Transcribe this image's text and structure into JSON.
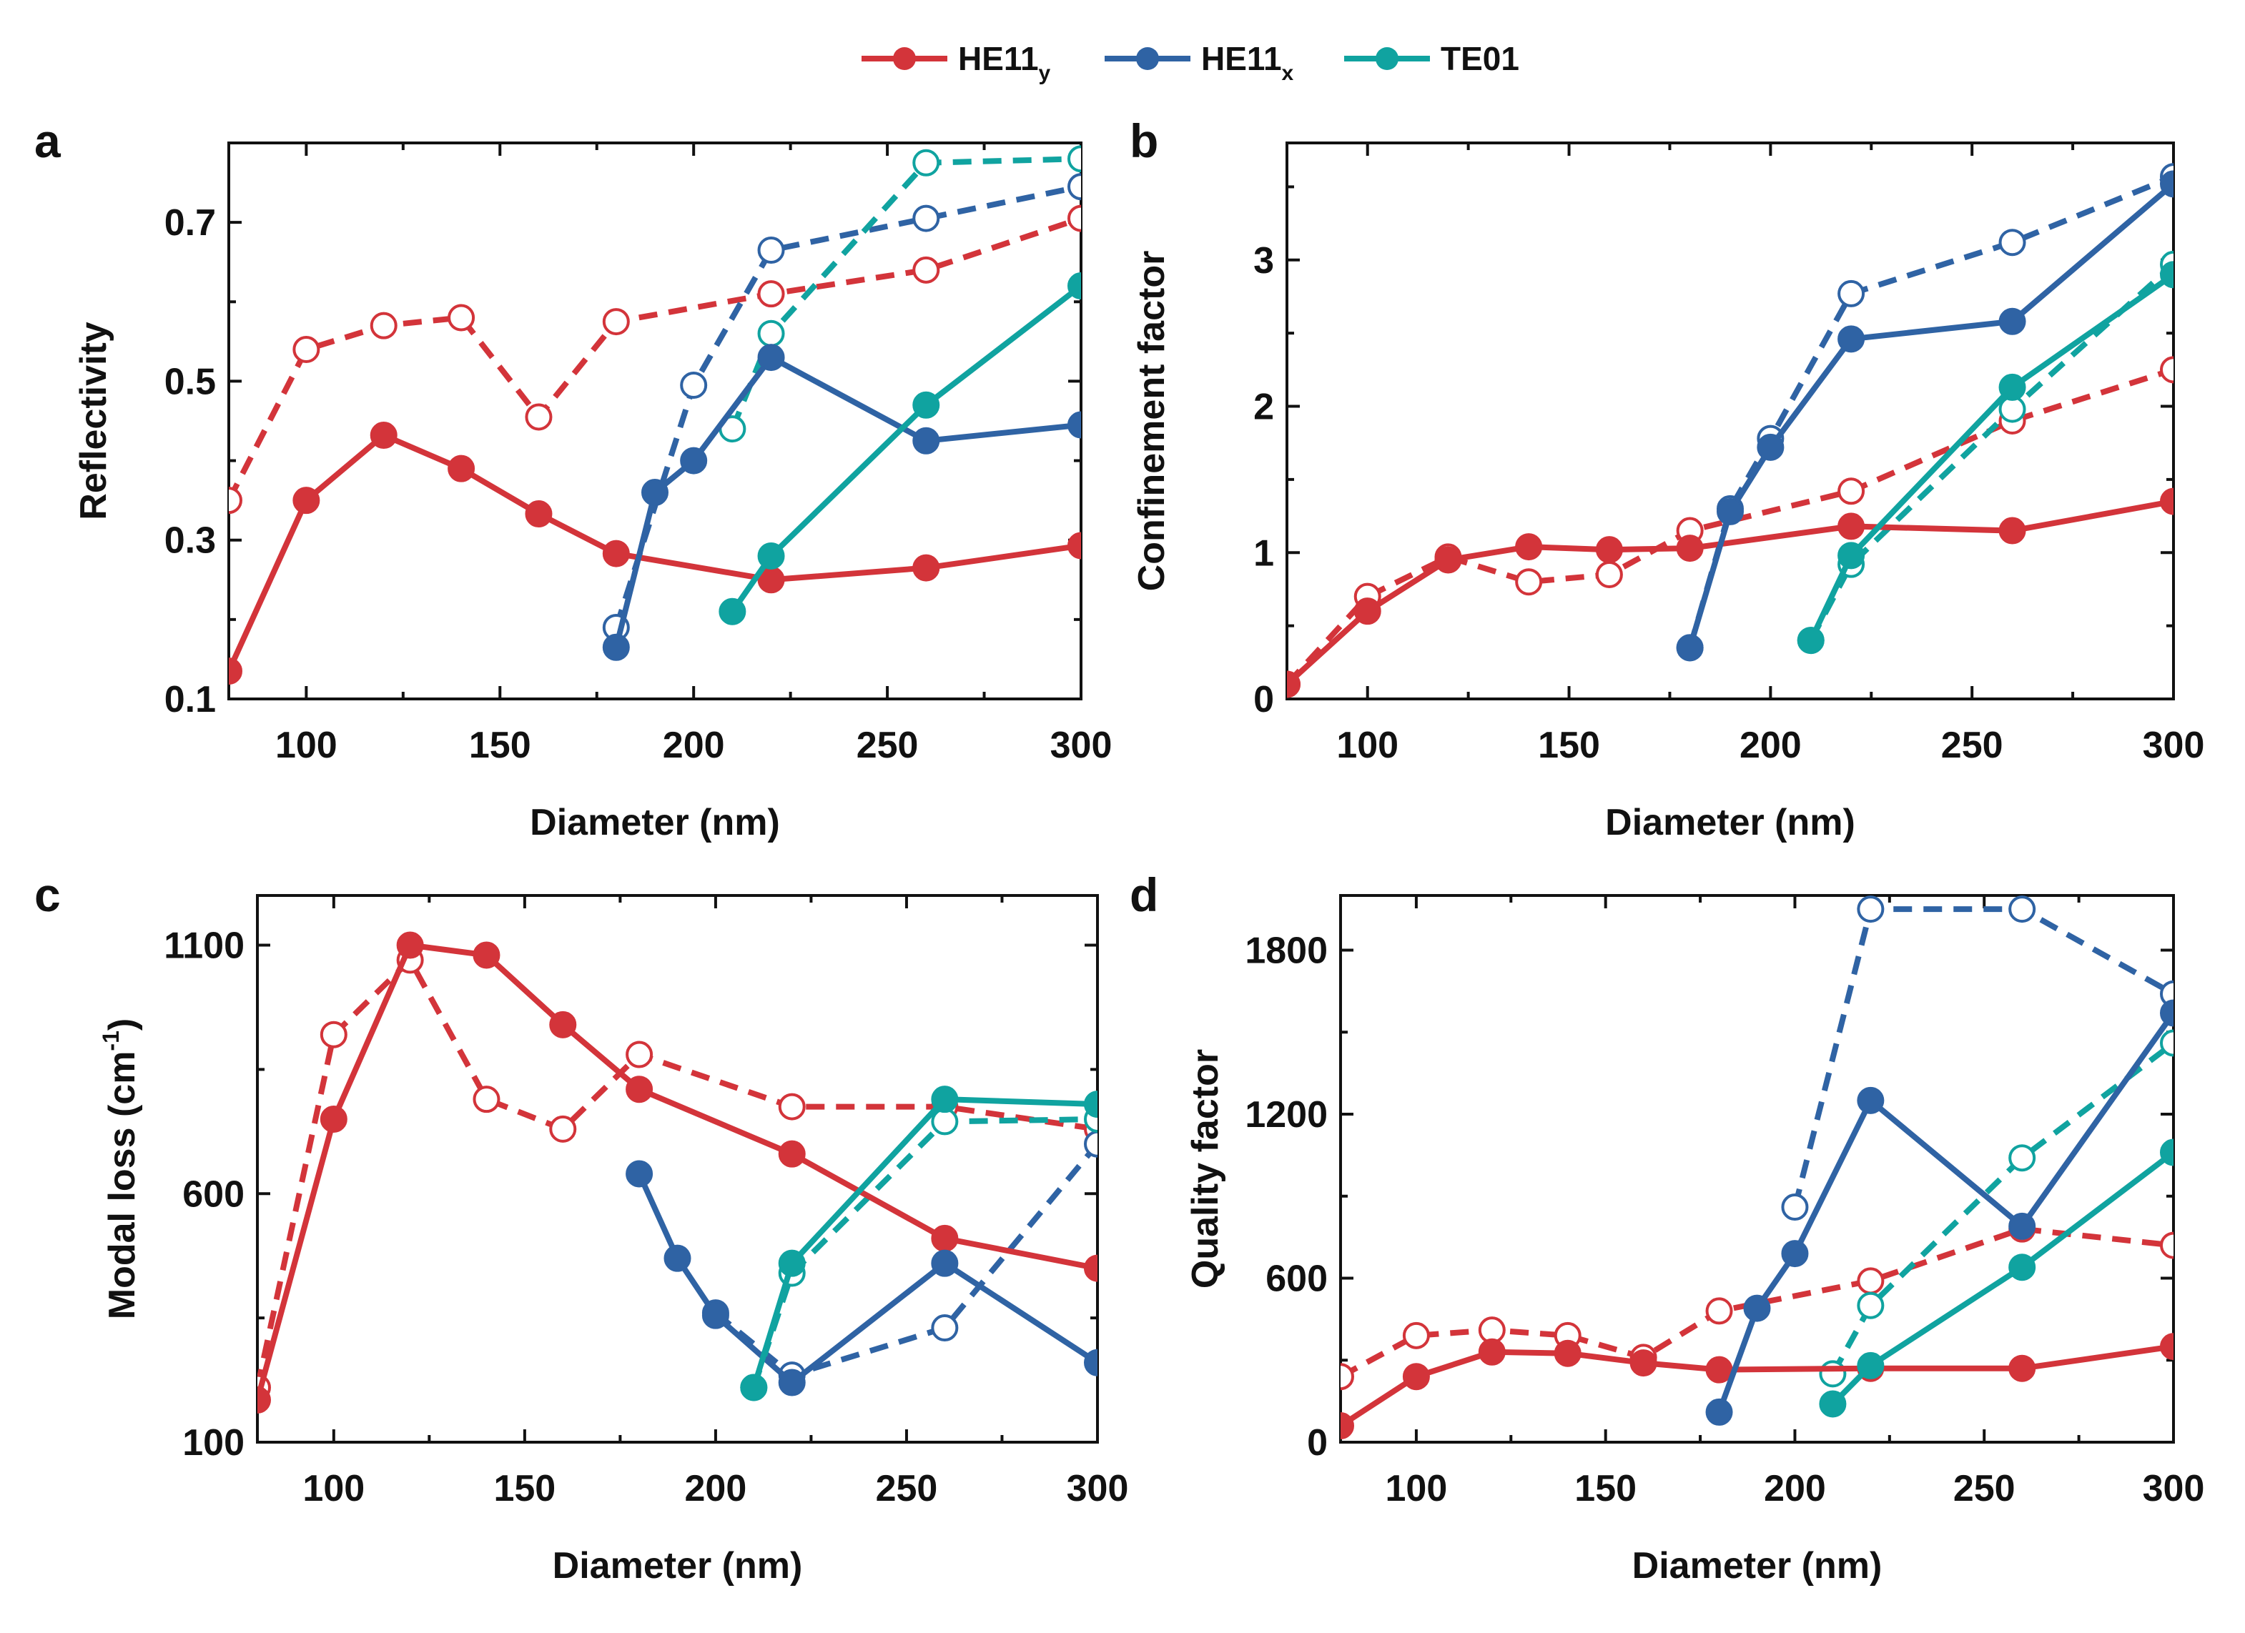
{
  "legend": [
    {
      "base": "HE11",
      "sub": "y",
      "color": "#d3343a"
    },
    {
      "base": "HE11",
      "sub": "x",
      "color": "#2f63a4"
    },
    {
      "base": "TE01",
      "sub": "",
      "color": "#10a3a0"
    }
  ],
  "chart_data": [
    {
      "type": "line",
      "panel": "a",
      "title": "",
      "xlabel": "Diameter (nm)",
      "ylabel": "Reflectivity",
      "xlim": [
        80,
        300
      ],
      "ylim": [
        0.1,
        0.8
      ],
      "xticks": [
        100,
        150,
        200,
        250,
        300
      ],
      "yticks": [
        0.1,
        0.3,
        0.5,
        0.7
      ],
      "xtick_labels": [
        "100",
        "150",
        "200",
        "250",
        "300"
      ],
      "ytick_labels": [
        "0.1",
        "0.3",
        "0.5",
        "0.7"
      ],
      "series": [
        {
          "name": "HE11y solid",
          "mode": "HE11y",
          "style": "solid",
          "x": [
            80,
            100,
            120,
            140,
            160,
            180,
            220,
            260,
            300
          ],
          "y": [
            0.135,
            0.35,
            0.432,
            0.39,
            0.333,
            0.283,
            0.25,
            0.265,
            0.293
          ]
        },
        {
          "name": "HE11y dashed",
          "mode": "HE11y",
          "style": "dashed",
          "x": [
            80,
            100,
            120,
            140,
            160,
            180,
            220,
            260,
            300
          ],
          "y": [
            0.35,
            0.54,
            0.57,
            0.58,
            0.455,
            0.575,
            0.61,
            0.64,
            0.705
          ]
        },
        {
          "name": "HE11x solid",
          "mode": "HE11x",
          "style": "solid",
          "x": [
            180,
            190,
            200,
            220,
            260,
            300
          ],
          "y": [
            0.165,
            0.36,
            0.4,
            0.53,
            0.425,
            0.445
          ]
        },
        {
          "name": "HE11x dashed",
          "mode": "HE11x",
          "style": "dashed",
          "x": [
            180,
            200,
            220,
            260,
            300
          ],
          "y": [
            0.19,
            0.495,
            0.665,
            0.705,
            0.745
          ]
        },
        {
          "name": "TE01 solid",
          "mode": "TE01",
          "style": "solid",
          "x": [
            210,
            220,
            260,
            300
          ],
          "y": [
            0.21,
            0.28,
            0.47,
            0.62
          ]
        },
        {
          "name": "TE01 dashed",
          "mode": "TE01",
          "style": "dashed",
          "x": [
            210,
            220,
            260,
            300
          ],
          "y": [
            0.44,
            0.56,
            0.775,
            0.78
          ]
        }
      ]
    },
    {
      "type": "line",
      "panel": "b",
      "title": "",
      "xlabel": "Diameter (nm)",
      "ylabel": "Confinement factor",
      "xlim": [
        80,
        300
      ],
      "ylim": [
        0,
        3.8
      ],
      "xticks": [
        100,
        150,
        200,
        250,
        300
      ],
      "yticks": [
        0,
        1,
        2,
        3
      ],
      "xtick_labels": [
        "100",
        "150",
        "200",
        "250",
        "300"
      ],
      "ytick_labels": [
        "0",
        "1",
        "2",
        "3"
      ],
      "series": [
        {
          "name": "HE11y solid",
          "mode": "HE11y",
          "style": "solid",
          "x": [
            80,
            100,
            120,
            140,
            160,
            180,
            220,
            260,
            300
          ],
          "y": [
            0.1,
            0.6,
            0.95,
            1.04,
            1.02,
            1.03,
            1.18,
            1.15,
            1.35
          ]
        },
        {
          "name": "HE11y dashed",
          "mode": "HE11y",
          "style": "dashed",
          "x": [
            80,
            100,
            120,
            140,
            160,
            180,
            220,
            260,
            300
          ],
          "y": [
            0.1,
            0.7,
            0.97,
            0.8,
            0.85,
            1.15,
            1.42,
            1.9,
            2.25
          ]
        },
        {
          "name": "HE11x solid",
          "mode": "HE11x",
          "style": "solid",
          "x": [
            180,
            190,
            200,
            220,
            260,
            300
          ],
          "y": [
            0.35,
            1.28,
            1.72,
            2.46,
            2.58,
            3.52
          ]
        },
        {
          "name": "HE11x dashed",
          "mode": "HE11x",
          "style": "dashed",
          "x": [
            180,
            190,
            200,
            220,
            260,
            300
          ],
          "y": [
            0.35,
            1.3,
            1.78,
            2.77,
            3.12,
            3.57
          ]
        },
        {
          "name": "TE01 solid",
          "mode": "TE01",
          "style": "solid",
          "x": [
            210,
            220,
            260,
            300
          ],
          "y": [
            0.4,
            0.98,
            2.13,
            2.9
          ]
        },
        {
          "name": "TE01 dashed",
          "mode": "TE01",
          "style": "dashed",
          "x": [
            210,
            220,
            260,
            300
          ],
          "y": [
            0.4,
            0.92,
            1.98,
            2.97
          ]
        }
      ]
    },
    {
      "type": "line",
      "panel": "c",
      "title": "",
      "xlabel": "Diameter (nm)",
      "ylabel": "Modal loss (cm",
      "ylabel_sup": "-1",
      "ylabel_end": ")",
      "xlim": [
        80,
        300
      ],
      "ylim": [
        100,
        1200
      ],
      "xticks": [
        100,
        150,
        200,
        250,
        300
      ],
      "yticks": [
        100,
        600,
        1100
      ],
      "xtick_labels": [
        "100",
        "150",
        "200",
        "250",
        "300"
      ],
      "ytick_labels": [
        "100",
        "600",
        "1100"
      ],
      "series": [
        {
          "name": "HE11y solid",
          "mode": "HE11y",
          "style": "solid",
          "x": [
            80,
            100,
            120,
            140,
            160,
            180,
            220,
            260,
            300
          ],
          "y": [
            185,
            750,
            1100,
            1080,
            940,
            810,
            680,
            510,
            450
          ]
        },
        {
          "name": "HE11y dashed",
          "mode": "HE11y",
          "style": "dashed",
          "x": [
            80,
            100,
            120,
            140,
            160,
            180,
            220,
            260,
            300
          ],
          "y": [
            210,
            920,
            1070,
            790,
            730,
            880,
            775,
            775,
            730
          ]
        },
        {
          "name": "HE11x solid",
          "mode": "HE11x",
          "style": "solid",
          "x": [
            180,
            190,
            200,
            220,
            260,
            300
          ],
          "y": [
            640,
            470,
            355,
            220,
            460,
            260
          ]
        },
        {
          "name": "HE11x dashed",
          "mode": "HE11x",
          "style": "dashed",
          "x": [
            200,
            220,
            260,
            300
          ],
          "y": [
            360,
            235,
            330,
            700
          ]
        },
        {
          "name": "TE01 solid",
          "mode": "TE01",
          "style": "solid",
          "x": [
            210,
            220,
            260,
            300
          ],
          "y": [
            210,
            460,
            790,
            780
          ]
        },
        {
          "name": "TE01 dashed",
          "mode": "TE01",
          "style": "dashed",
          "x": [
            210,
            220,
            260,
            300
          ],
          "y": [
            210,
            440,
            745,
            750
          ]
        }
      ]
    },
    {
      "type": "line",
      "panel": "d",
      "title": "",
      "xlabel": "Diameter (nm)",
      "ylabel": "Quality factor",
      "xlim": [
        80,
        300
      ],
      "ylim": [
        0,
        2000
      ],
      "xticks": [
        100,
        150,
        200,
        250,
        300
      ],
      "yticks": [
        0,
        600,
        1200,
        1800
      ],
      "xtick_labels": [
        "100",
        "150",
        "200",
        "250",
        "300"
      ],
      "ytick_labels": [
        "0",
        "600",
        "1200",
        "1800"
      ],
      "series": [
        {
          "name": "HE11y solid",
          "mode": "HE11y",
          "style": "solid",
          "x": [
            80,
            100,
            120,
            140,
            160,
            180,
            220,
            260,
            300
          ],
          "y": [
            60,
            240,
            330,
            325,
            290,
            265,
            270,
            270,
            350
          ]
        },
        {
          "name": "HE11y dashed",
          "mode": "HE11y",
          "style": "dashed",
          "x": [
            80,
            100,
            120,
            140,
            160,
            180,
            220,
            260,
            300
          ],
          "y": [
            240,
            390,
            410,
            390,
            310,
            480,
            590,
            780,
            720
          ]
        },
        {
          "name": "HE11x solid",
          "mode": "HE11x",
          "style": "solid",
          "x": [
            180,
            190,
            200,
            220,
            260,
            300
          ],
          "y": [
            110,
            490,
            690,
            1250,
            790,
            1570
          ]
        },
        {
          "name": "HE11x dashed",
          "mode": "HE11x",
          "style": "dashed",
          "x": [
            200,
            220,
            260,
            300
          ],
          "y": [
            860,
            1950,
            1950,
            1640
          ]
        },
        {
          "name": "TE01 solid",
          "mode": "TE01",
          "style": "solid",
          "x": [
            210,
            220,
            260,
            300
          ],
          "y": [
            140,
            280,
            640,
            1060
          ]
        },
        {
          "name": "TE01 dashed",
          "mode": "TE01",
          "style": "dashed",
          "x": [
            210,
            220,
            260,
            300
          ],
          "y": [
            250,
            500,
            1040,
            1460
          ]
        }
      ]
    }
  ]
}
